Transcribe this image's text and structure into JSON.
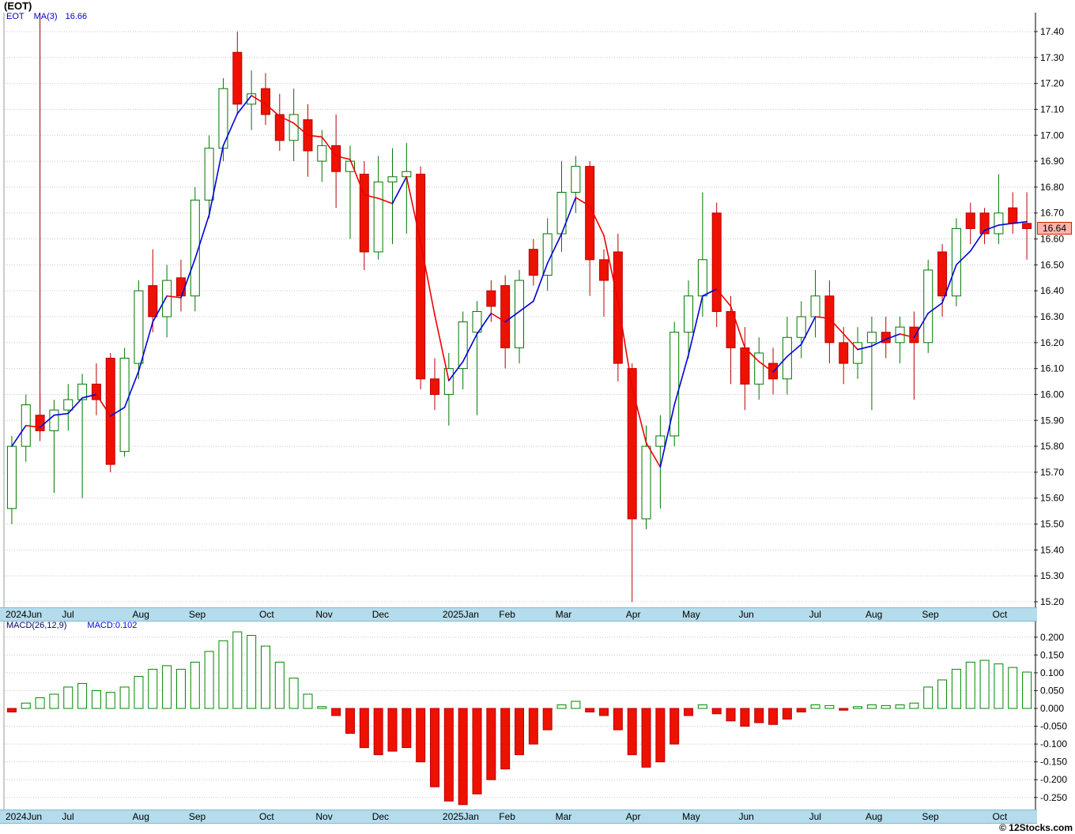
{
  "title": "(EOT)",
  "price_legend": {
    "symbol": "EOT",
    "ma_label": "MA(3)",
    "ma_value": "16.66"
  },
  "macd_legend": {
    "params": "MACD(26,12,9)",
    "value": "MACD:0.102"
  },
  "last_price_label": "16.64",
  "copyright": "© 12Stocks.com",
  "colors": {
    "up_candle": "#007700",
    "down_candle": "#ee1100",
    "down_candle_edge": "#bb0000",
    "ma_rising": "#0000dd",
    "ma_falling": "#ee0000",
    "gridline": "#c8c8c8",
    "axis_strip": "#b4dcec",
    "badge_bg": "#ffb4aa",
    "badge_border": "#cc2200",
    "macd_pos_edge": "#008800",
    "macd_neg_fill": "#ee1100",
    "marker_line": "#990000"
  },
  "chart_data": {
    "type": "candlestick+macd_histogram",
    "title": "(EOT)",
    "legend": [
      "EOT",
      "MA(3) 16.66",
      "MACD(26,12,9)",
      "MACD:0.102"
    ],
    "x_axis": {
      "months": [
        {
          "label": "2024Jun",
          "index": 0
        },
        {
          "label": "Jul",
          "index": 4
        },
        {
          "label": "Aug",
          "index": 9
        },
        {
          "label": "Sep",
          "index": 13
        },
        {
          "label": "Oct",
          "index": 18
        },
        {
          "label": "Nov",
          "index": 22
        },
        {
          "label": "Dec",
          "index": 26
        },
        {
          "label": "2025Jan",
          "index": 31
        },
        {
          "label": "Feb",
          "index": 35
        },
        {
          "label": "Mar",
          "index": 39
        },
        {
          "label": "Apr",
          "index": 44
        },
        {
          "label": "May",
          "index": 48
        },
        {
          "label": "Jun",
          "index": 52
        },
        {
          "label": "Jul",
          "index": 57
        },
        {
          "label": "Aug",
          "index": 61
        },
        {
          "label": "Sep",
          "index": 65
        },
        {
          "label": "Oct",
          "index": 70
        }
      ]
    },
    "price_pane": {
      "ylabel": "Price",
      "ylim": [
        15.2,
        17.4
      ],
      "tick_step": 0.1,
      "ma_period": 3,
      "last_close": 16.64,
      "marker_line": {
        "index": 2,
        "to_price": 15.85
      },
      "candles_ohlc": [
        [
          15.56,
          15.84,
          15.5,
          15.8
        ],
        [
          15.8,
          16.0,
          15.74,
          15.96
        ],
        [
          15.92,
          16.0,
          15.82,
          15.86
        ],
        [
          15.86,
          15.98,
          15.62,
          15.94
        ],
        [
          15.94,
          16.04,
          15.86,
          15.98
        ],
        [
          15.98,
          16.08,
          15.6,
          16.04
        ],
        [
          16.04,
          16.12,
          15.92,
          15.98
        ],
        [
          16.14,
          16.16,
          15.7,
          15.73
        ],
        [
          15.78,
          16.18,
          15.76,
          16.14
        ],
        [
          16.12,
          16.44,
          16.06,
          16.4
        ],
        [
          16.42,
          16.56,
          16.24,
          16.3
        ],
        [
          16.3,
          16.5,
          16.22,
          16.44
        ],
        [
          16.45,
          16.52,
          16.32,
          16.38
        ],
        [
          16.38,
          16.8,
          16.32,
          16.75
        ],
        [
          16.75,
          17.0,
          16.68,
          16.95
        ],
        [
          16.95,
          17.22,
          16.9,
          17.18
        ],
        [
          17.32,
          17.4,
          17.08,
          17.12
        ],
        [
          17.12,
          17.25,
          17.02,
          17.16
        ],
        [
          17.18,
          17.24,
          17.04,
          17.08
        ],
        [
          17.08,
          17.16,
          16.94,
          16.98
        ],
        [
          16.98,
          17.18,
          16.9,
          17.08
        ],
        [
          17.06,
          17.12,
          16.84,
          16.94
        ],
        [
          16.9,
          17.02,
          16.82,
          16.96
        ],
        [
          16.96,
          17.08,
          16.72,
          16.86
        ],
        [
          16.86,
          16.96,
          16.6,
          16.9
        ],
        [
          16.85,
          16.9,
          16.48,
          16.55
        ],
        [
          16.55,
          16.92,
          16.52,
          16.82
        ],
        [
          16.82,
          16.95,
          16.58,
          16.84
        ],
        [
          16.84,
          16.97,
          16.62,
          16.86
        ],
        [
          16.85,
          16.88,
          16.02,
          16.06
        ],
        [
          16.06,
          16.14,
          15.94,
          16.0
        ],
        [
          16.0,
          16.16,
          15.88,
          16.1
        ],
        [
          16.1,
          16.32,
          16.02,
          16.28
        ],
        [
          16.24,
          16.36,
          15.92,
          16.32
        ],
        [
          16.4,
          16.44,
          16.28,
          16.34
        ],
        [
          16.42,
          16.46,
          16.1,
          16.18
        ],
        [
          16.18,
          16.48,
          16.12,
          16.44
        ],
        [
          16.56,
          16.6,
          16.42,
          16.46
        ],
        [
          16.46,
          16.68,
          16.4,
          16.62
        ],
        [
          16.62,
          16.9,
          16.55,
          16.78
        ],
        [
          16.78,
          16.92,
          16.7,
          16.88
        ],
        [
          16.88,
          16.9,
          16.38,
          16.52
        ],
        [
          16.52,
          16.56,
          16.3,
          16.44
        ],
        [
          16.55,
          16.62,
          16.05,
          16.12
        ],
        [
          16.1,
          16.12,
          15.2,
          15.52
        ],
        [
          15.52,
          15.88,
          15.48,
          15.8
        ],
        [
          15.8,
          15.92,
          15.56,
          15.84
        ],
        [
          15.84,
          16.28,
          15.8,
          16.24
        ],
        [
          16.24,
          16.44,
          16.14,
          16.38
        ],
        [
          16.38,
          16.78,
          16.3,
          16.52
        ],
        [
          16.7,
          16.74,
          16.26,
          16.32
        ],
        [
          16.32,
          16.38,
          16.04,
          16.18
        ],
        [
          16.18,
          16.26,
          15.94,
          16.04
        ],
        [
          16.04,
          16.22,
          15.98,
          16.16
        ],
        [
          16.12,
          16.18,
          16.0,
          16.06
        ],
        [
          16.06,
          16.3,
          16.0,
          16.22
        ],
        [
          16.22,
          16.36,
          16.14,
          16.3
        ],
        [
          16.3,
          16.48,
          16.22,
          16.38
        ],
        [
          16.38,
          16.44,
          16.12,
          16.2
        ],
        [
          16.2,
          16.26,
          16.04,
          16.12
        ],
        [
          16.12,
          16.26,
          16.06,
          16.2
        ],
        [
          16.2,
          16.3,
          15.94,
          16.24
        ],
        [
          16.24,
          16.3,
          16.14,
          16.2
        ],
        [
          16.2,
          16.3,
          16.12,
          16.26
        ],
        [
          16.26,
          16.32,
          15.98,
          16.2
        ],
        [
          16.2,
          16.52,
          16.16,
          16.48
        ],
        [
          16.55,
          16.58,
          16.3,
          16.38
        ],
        [
          16.38,
          16.68,
          16.34,
          16.64
        ],
        [
          16.7,
          16.74,
          16.58,
          16.64
        ],
        [
          16.7,
          16.72,
          16.58,
          16.62
        ],
        [
          16.62,
          16.85,
          16.58,
          16.7
        ],
        [
          16.72,
          16.78,
          16.62,
          16.66
        ],
        [
          16.66,
          16.78,
          16.52,
          16.64
        ]
      ]
    },
    "macd_pane": {
      "ylabel": "MACD",
      "ylim": [
        -0.275,
        0.225
      ],
      "ticks": [
        0.2,
        0.15,
        0.1,
        0.05,
        0.0,
        -0.05,
        -0.1,
        -0.15,
        -0.2,
        -0.25
      ],
      "last_value": 0.102,
      "values": [
        -0.01,
        0.015,
        0.03,
        0.04,
        0.06,
        0.07,
        0.05,
        0.045,
        0.06,
        0.09,
        0.11,
        0.12,
        0.11,
        0.13,
        0.16,
        0.19,
        0.215,
        0.205,
        0.175,
        0.13,
        0.085,
        0.04,
        0.005,
        -0.02,
        -0.07,
        -0.11,
        -0.13,
        -0.12,
        -0.11,
        -0.15,
        -0.22,
        -0.26,
        -0.27,
        -0.24,
        -0.2,
        -0.17,
        -0.13,
        -0.1,
        -0.06,
        0.01,
        0.02,
        -0.01,
        -0.02,
        -0.06,
        -0.13,
        -0.165,
        -0.15,
        -0.1,
        -0.02,
        0.01,
        -0.015,
        -0.035,
        -0.05,
        -0.04,
        -0.045,
        -0.03,
        -0.01,
        0.01,
        0.008,
        -0.005,
        0.005,
        0.01,
        0.008,
        0.01,
        0.015,
        0.06,
        0.08,
        0.11,
        0.13,
        0.135,
        0.125,
        0.115,
        0.102
      ]
    }
  }
}
